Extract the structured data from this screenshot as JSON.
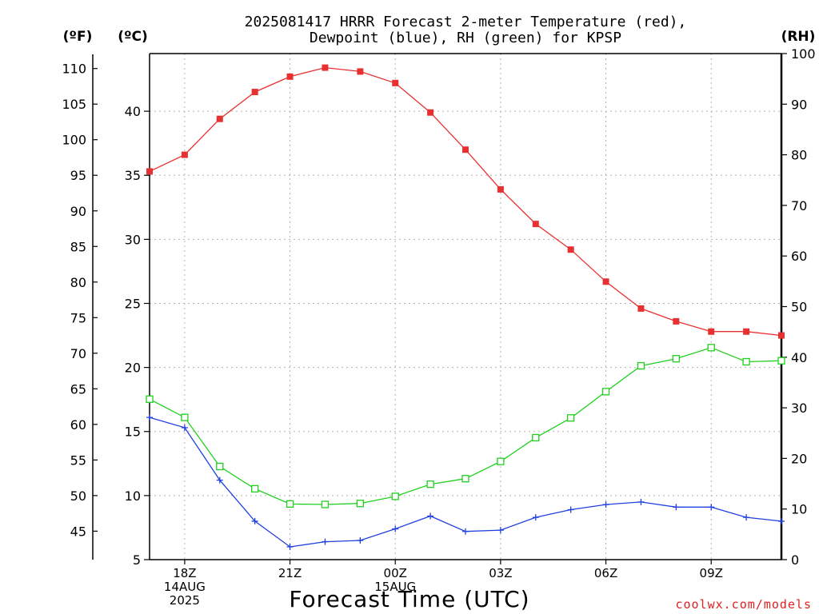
{
  "chart_data": {
    "type": "line",
    "title_lines": [
      "2025081417 HRRR Forecast 2-meter Temperature (red),",
      "Dewpoint (blue), RH (green) for KPSP"
    ],
    "xlabel": "Forecast Time (UTC)",
    "units": {
      "fahrenheit": "(ºF)",
      "celsius": "(ºC)",
      "rh": "(RH)"
    },
    "credit": "coolwx.com/models",
    "x_hours": [
      17,
      18,
      19,
      20,
      21,
      22,
      23,
      24,
      25,
      26,
      27,
      28,
      29,
      30,
      31,
      32,
      33,
      34,
      35
    ],
    "x_ticks": [
      {
        "hour": 18,
        "lines": [
          "18Z",
          "14AUG",
          "2025"
        ]
      },
      {
        "hour": 21,
        "lines": [
          "21Z"
        ]
      },
      {
        "hour": 24,
        "lines": [
          "00Z",
          "15AUG"
        ]
      },
      {
        "hour": 27,
        "lines": [
          "03Z"
        ]
      },
      {
        "hour": 30,
        "lines": [
          "06Z"
        ]
      },
      {
        "hour": 33,
        "lines": [
          "09Z"
        ]
      }
    ],
    "celsius_ticks": [
      5,
      10,
      15,
      20,
      25,
      30,
      35,
      40
    ],
    "fahrenheit_ticks": [
      45,
      50,
      55,
      60,
      65,
      70,
      75,
      80,
      85,
      90,
      95,
      100,
      105,
      110
    ],
    "rh_ticks": [
      0,
      10,
      20,
      30,
      40,
      50,
      60,
      70,
      80,
      90,
      100
    ],
    "ylim_celsius": [
      5,
      44.5
    ],
    "ylim_rh": [
      0,
      100
    ],
    "grid": true,
    "series": [
      {
        "axis": "celsius",
        "marker": "filled-square",
        "color": "#e83030",
        "values": [
          35.3,
          36.6,
          39.4,
          41.5,
          42.7,
          43.4,
          43.1,
          42.2,
          39.9,
          37.0,
          33.9,
          31.2,
          29.2,
          26.7,
          24.6,
          23.6,
          22.8,
          22.8,
          22.5
        ]
      },
      {
        "axis": "celsius",
        "marker": "plus",
        "color": "#2040e0",
        "values": [
          16.1,
          15.3,
          11.2,
          8.0,
          6.0,
          6.4,
          6.5,
          7.4,
          8.4,
          7.2,
          7.3,
          8.3,
          8.9,
          9.3,
          9.5,
          9.1,
          9.1,
          8.3,
          8.0
        ]
      },
      {
        "axis": "rh",
        "marker": "open-square",
        "color": "#20d020",
        "values": [
          31.7,
          28.1,
          18.4,
          14.0,
          11.0,
          10.9,
          11.1,
          12.5,
          14.9,
          16.0,
          19.4,
          24.1,
          28.0,
          33.2,
          38.3,
          39.7,
          41.9,
          39.1,
          39.3
        ]
      }
    ]
  }
}
